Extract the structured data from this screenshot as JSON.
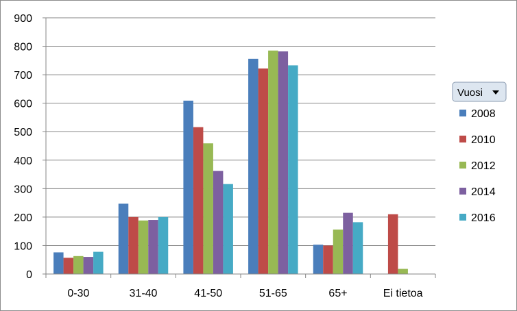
{
  "chart_data": {
    "type": "bar",
    "categories": [
      "0-30",
      "31-40",
      "41-50",
      "51-65",
      "65+",
      "Ei tietoa"
    ],
    "series": [
      {
        "name": "2008",
        "color": "#4a7ebb",
        "values": [
          76,
          247,
          609,
          756,
          103,
          0
        ]
      },
      {
        "name": "2010",
        "color": "#be4b48",
        "values": [
          57,
          200,
          516,
          722,
          100,
          210
        ]
      },
      {
        "name": "2012",
        "color": "#98b954",
        "values": [
          63,
          188,
          459,
          785,
          156,
          18
        ]
      },
      {
        "name": "2014",
        "color": "#7d60a0",
        "values": [
          60,
          190,
          362,
          782,
          215,
          0
        ]
      },
      {
        "name": "2016",
        "color": "#46aac5",
        "values": [
          78,
          200,
          316,
          733,
          182,
          0
        ]
      }
    ],
    "ylim": [
      0,
      900
    ],
    "yticks": [
      0,
      100,
      200,
      300,
      400,
      500,
      600,
      700,
      800,
      900
    ],
    "grid": true,
    "legend_position": "right"
  },
  "legend": {
    "filter_label": "Vuosi"
  }
}
